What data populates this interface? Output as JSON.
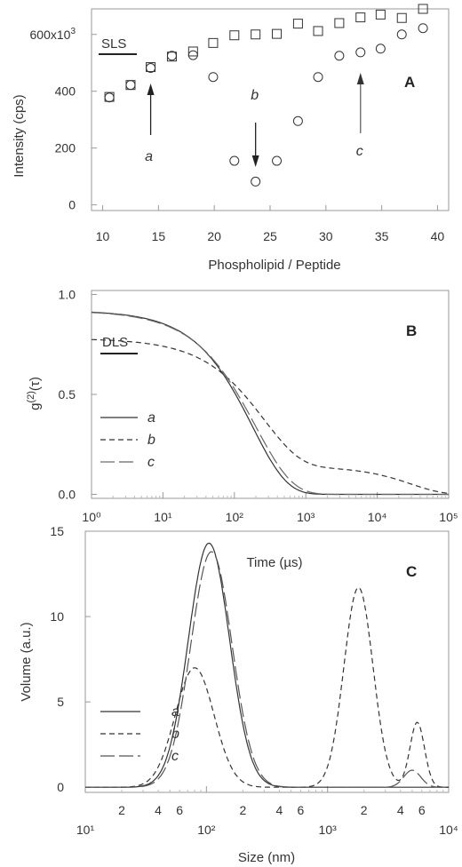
{
  "chart_data": [
    {
      "type": "scatter",
      "panel": "A",
      "ylabel": "Intensity (cps)",
      "xlabel": "Phospholipid / Peptide",
      "x_ticks": [
        "10",
        "15",
        "20",
        "25",
        "30",
        "35",
        "40"
      ],
      "y_ticks": [
        "0",
        "200",
        "400",
        "600x10³"
      ],
      "xlim": [
        9,
        41
      ],
      "ylim": [
        -20,
        690
      ],
      "legend_label": "SLS",
      "series": [
        {
          "marker": "square",
          "points": [
            [
              10.6,
              380
            ],
            [
              12.5,
              422
            ],
            [
              14.3,
              485
            ],
            [
              16.2,
              522
            ],
            [
              18.1,
              540
            ],
            [
              19.9,
              570
            ],
            [
              21.8,
              597
            ],
            [
              23.7,
              600
            ],
            [
              25.6,
              602
            ],
            [
              27.5,
              638
            ],
            [
              29.3,
              612
            ],
            [
              31.2,
              640
            ],
            [
              33.1,
              660
            ],
            [
              34.9,
              670
            ],
            [
              36.8,
              658
            ],
            [
              38.7,
              690
            ]
          ]
        },
        {
          "marker": "circle",
          "points": [
            [
              10.6,
              378
            ],
            [
              12.5,
              422
            ],
            [
              14.3,
              482
            ],
            [
              16.2,
              525
            ],
            [
              18.1,
              527
            ],
            [
              19.9,
              450
            ],
            [
              21.8,
              155
            ],
            [
              23.7,
              82
            ],
            [
              25.6,
              155
            ],
            [
              27.5,
              295
            ],
            [
              29.3,
              450
            ],
            [
              31.2,
              525
            ],
            [
              33.1,
              537
            ],
            [
              34.9,
              550
            ],
            [
              36.8,
              600
            ],
            [
              38.7,
              622
            ]
          ]
        }
      ],
      "annotations": [
        {
          "label": "a",
          "x": 14.3,
          "direction": "up"
        },
        {
          "label": "b",
          "x": 23.7,
          "direction": "down"
        },
        {
          "label": "c",
          "x": 33.1,
          "direction": "up"
        }
      ]
    },
    {
      "type": "line",
      "panel": "B",
      "ylabel": "g(2)(τ)",
      "xlabel": "Time (µs)",
      "xscale": "log",
      "xlim": [
        1,
        100000
      ],
      "ylim": [
        -0.02,
        1.02
      ],
      "x_ticks": [
        "10⁰",
        "10¹",
        "10²",
        "10³",
        "10⁴",
        "10⁵"
      ],
      "y_ticks": [
        "0.0",
        "0.5",
        "1.0"
      ],
      "legend_label": "DLS",
      "series": [
        {
          "name": "a",
          "style": "solid",
          "tau": 180,
          "beta": 0.9,
          "base": 0.0,
          "amp": 0.92,
          "tail": 0.0
        },
        {
          "name": "b",
          "style": "dashed",
          "tau": 260,
          "beta": 0.85,
          "base": 0.0,
          "amp": 0.78,
          "tail": 0.14
        },
        {
          "name": "c",
          "style": "longdash",
          "tau": 200,
          "beta": 0.85,
          "base": 0.0,
          "amp": 0.92,
          "tail": 0.0
        }
      ]
    },
    {
      "type": "line",
      "panel": "C",
      "ylabel": "Volume (a.u.)",
      "xlabel": "Size (nm)",
      "xscale": "log",
      "xlim": [
        10,
        10000
      ],
      "ylim": [
        -0.3,
        15
      ],
      "x_major_ticks": [
        "10¹",
        "10²",
        "10³",
        "10⁴"
      ],
      "x_minor_labels": [
        "2",
        "4",
        "6",
        "2",
        "4",
        "6",
        "2",
        "4",
        "6"
      ],
      "y_ticks": [
        "0",
        "5",
        "10",
        "15"
      ],
      "series": [
        {
          "name": "a",
          "style": "solid",
          "peaks": [
            [
              105,
              14.3,
              0.17
            ]
          ]
        },
        {
          "name": "b",
          "style": "dashed",
          "peaks": [
            [
              80,
              7.0,
              0.16
            ],
            [
              1800,
              11.7,
              0.12
            ],
            [
              5500,
              3.8,
              0.06
            ]
          ]
        },
        {
          "name": "c",
          "style": "longdash",
          "peaks": [
            [
              110,
              13.8,
              0.17
            ],
            [
              5000,
              1.0,
              0.07
            ]
          ]
        }
      ]
    }
  ]
}
